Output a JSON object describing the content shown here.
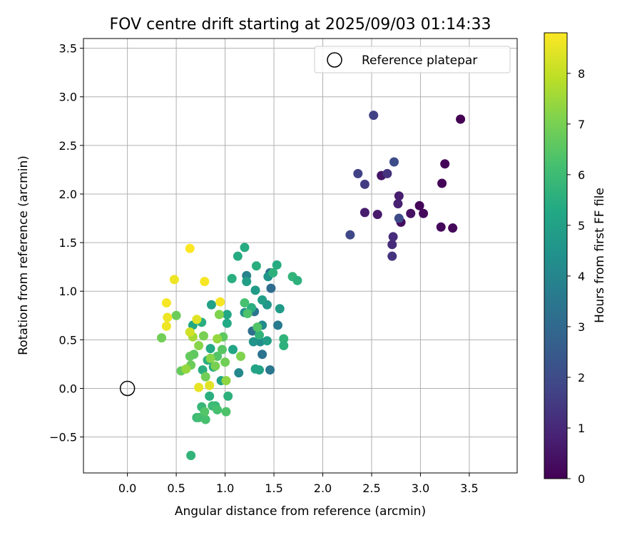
{
  "chart_data": {
    "type": "scatter",
    "title": "FOV centre drift starting at 2025/09/03 01:14:33",
    "xlabel": "Angular distance from reference (arcmin)",
    "ylabel": "Rotation from reference (arcmin)",
    "xlim": [
      -0.45,
      3.99
    ],
    "ylim": [
      -0.87,
      3.6
    ],
    "xticks": [
      "0.0",
      "0.5",
      "1.0",
      "1.5",
      "2.0",
      "2.5",
      "3.0",
      "3.5"
    ],
    "yticks": [
      "−0.5",
      "0.0",
      "0.5",
      "1.0",
      "1.5",
      "2.0",
      "2.5",
      "3.0",
      "3.5"
    ],
    "grid": true,
    "legend": {
      "placement": "upper right",
      "entries": [
        "Reference platepar"
      ]
    },
    "reference_point": {
      "x": 0.0,
      "y": 0.0
    },
    "colorbar": {
      "label": "Hours from first FF file",
      "colormap": "viridis",
      "range": [
        0,
        8.8
      ],
      "ticks": [
        "0",
        "1",
        "2",
        "3",
        "4",
        "5",
        "6",
        "7",
        "8"
      ]
    },
    "points": [
      {
        "x": 3.41,
        "y": 2.77,
        "h": 0.0
      },
      {
        "x": 3.25,
        "y": 2.31,
        "h": 0.1
      },
      {
        "x": 3.22,
        "y": 2.11,
        "h": 0.1
      },
      {
        "x": 2.99,
        "y": 1.88,
        "h": 0.1
      },
      {
        "x": 3.03,
        "y": 1.8,
        "h": 0.2
      },
      {
        "x": 2.9,
        "y": 1.8,
        "h": 0.4
      },
      {
        "x": 3.21,
        "y": 1.66,
        "h": 0.2
      },
      {
        "x": 3.33,
        "y": 1.65,
        "h": 0.2
      },
      {
        "x": 2.8,
        "y": 1.71,
        "h": 0.3
      },
      {
        "x": 2.78,
        "y": 1.98,
        "h": 0.7
      },
      {
        "x": 2.77,
        "y": 1.9,
        "h": 0.8
      },
      {
        "x": 2.6,
        "y": 2.19,
        "h": 0.5
      },
      {
        "x": 2.56,
        "y": 1.79,
        "h": 0.6
      },
      {
        "x": 2.43,
        "y": 1.81,
        "h": 0.7
      },
      {
        "x": 2.66,
        "y": 2.21,
        "h": 1.3
      },
      {
        "x": 2.72,
        "y": 1.56,
        "h": 1.1
      },
      {
        "x": 2.71,
        "y": 1.48,
        "h": 1.1
      },
      {
        "x": 2.71,
        "y": 1.36,
        "h": 1.3
      },
      {
        "x": 2.78,
        "y": 1.75,
        "h": 2.0
      },
      {
        "x": 2.43,
        "y": 2.1,
        "h": 1.5
      },
      {
        "x": 2.36,
        "y": 2.21,
        "h": 1.7
      },
      {
        "x": 2.52,
        "y": 2.81,
        "h": 1.7
      },
      {
        "x": 2.73,
        "y": 2.33,
        "h": 2.0
      },
      {
        "x": 2.28,
        "y": 1.58,
        "h": 1.9
      },
      {
        "x": 1.46,
        "y": 1.19,
        "h": 3.2
      },
      {
        "x": 1.47,
        "y": 1.03,
        "h": 3.1
      },
      {
        "x": 1.28,
        "y": 0.59,
        "h": 3.2
      },
      {
        "x": 1.3,
        "y": 0.79,
        "h": 3.4
      },
      {
        "x": 1.38,
        "y": 0.35,
        "h": 3.3
      },
      {
        "x": 1.46,
        "y": 0.19,
        "h": 3.5
      },
      {
        "x": 1.54,
        "y": 0.65,
        "h": 3.6
      },
      {
        "x": 1.22,
        "y": 1.16,
        "h": 3.9
      },
      {
        "x": 1.14,
        "y": 0.16,
        "h": 4.1
      },
      {
        "x": 1.36,
        "y": 0.48,
        "h": 4.3
      },
      {
        "x": 1.38,
        "y": 0.65,
        "h": 4.2
      },
      {
        "x": 1.29,
        "y": 0.48,
        "h": 4.5
      },
      {
        "x": 1.2,
        "y": 0.78,
        "h": 4.4
      },
      {
        "x": 1.43,
        "y": 0.86,
        "h": 4.6
      },
      {
        "x": 1.44,
        "y": 1.15,
        "h": 4.5
      },
      {
        "x": 1.31,
        "y": 1.01,
        "h": 4.8
      },
      {
        "x": 1.22,
        "y": 1.1,
        "h": 4.9
      },
      {
        "x": 1.38,
        "y": 0.91,
        "h": 4.9
      },
      {
        "x": 1.56,
        "y": 0.82,
        "h": 4.8
      },
      {
        "x": 1.43,
        "y": 0.49,
        "h": 4.9
      },
      {
        "x": 1.35,
        "y": 0.19,
        "h": 5.0
      },
      {
        "x": 1.31,
        "y": 0.2,
        "h": 5.1
      },
      {
        "x": 1.08,
        "y": 0.4,
        "h": 5.2
      },
      {
        "x": 0.86,
        "y": 0.86,
        "h": 5.0
      },
      {
        "x": 0.96,
        "y": 0.08,
        "h": 5.1
      },
      {
        "x": 1.02,
        "y": 0.76,
        "h": 5.2
      },
      {
        "x": 1.02,
        "y": 0.67,
        "h": 5.3
      },
      {
        "x": 0.67,
        "y": 0.65,
        "h": 5.3
      },
      {
        "x": 1.2,
        "y": 1.45,
        "h": 5.4
      },
      {
        "x": 1.13,
        "y": 1.36,
        "h": 5.4
      },
      {
        "x": 1.07,
        "y": 1.13,
        "h": 5.5
      },
      {
        "x": 1.32,
        "y": 1.26,
        "h": 5.5
      },
      {
        "x": 1.53,
        "y": 1.27,
        "h": 5.4
      },
      {
        "x": 1.49,
        "y": 1.19,
        "h": 5.6
      },
      {
        "x": 1.69,
        "y": 1.15,
        "h": 5.7
      },
      {
        "x": 1.74,
        "y": 1.11,
        "h": 5.6
      },
      {
        "x": 1.6,
        "y": 0.51,
        "h": 5.7
      },
      {
        "x": 1.6,
        "y": 0.44,
        "h": 5.6
      },
      {
        "x": 1.27,
        "y": 0.83,
        "h": 5.5
      },
      {
        "x": 1.35,
        "y": 0.55,
        "h": 5.7
      },
      {
        "x": 0.76,
        "y": 0.68,
        "h": 5.5
      },
      {
        "x": 0.85,
        "y": 0.41,
        "h": 5.3
      },
      {
        "x": 0.88,
        "y": 0.22,
        "h": 5.4
      },
      {
        "x": 0.77,
        "y": 0.19,
        "h": 5.5
      },
      {
        "x": 0.82,
        "y": 0.29,
        "h": 5.6
      },
      {
        "x": 0.84,
        "y": -0.08,
        "h": 5.5
      },
      {
        "x": 1.03,
        "y": -0.08,
        "h": 5.6
      },
      {
        "x": 0.9,
        "y": -0.18,
        "h": 5.8
      },
      {
        "x": 0.76,
        "y": -0.19,
        "h": 5.8
      },
      {
        "x": 0.71,
        "y": -0.3,
        "h": 5.9
      },
      {
        "x": 0.65,
        "y": -0.69,
        "h": 5.7
      },
      {
        "x": 0.73,
        "y": -0.3,
        "h": 6.1
      },
      {
        "x": 0.8,
        "y": -0.32,
        "h": 6.2
      },
      {
        "x": 0.87,
        "y": -0.18,
        "h": 6.0
      },
      {
        "x": 0.92,
        "y": -0.22,
        "h": 6.2
      },
      {
        "x": 1.01,
        "y": -0.24,
        "h": 6.3
      },
      {
        "x": 0.79,
        "y": -0.24,
        "h": 6.4
      },
      {
        "x": 1.2,
        "y": 0.88,
        "h": 6.2
      },
      {
        "x": 1.23,
        "y": 0.77,
        "h": 6.3
      },
      {
        "x": 1.33,
        "y": 0.63,
        "h": 6.4
      },
      {
        "x": 0.92,
        "y": 0.33,
        "h": 6.4
      },
      {
        "x": 0.97,
        "y": 0.4,
        "h": 6.5
      },
      {
        "x": 0.98,
        "y": 0.53,
        "h": 6.6
      },
      {
        "x": 0.68,
        "y": 0.35,
        "h": 6.6
      },
      {
        "x": 0.64,
        "y": 0.33,
        "h": 6.7
      },
      {
        "x": 0.55,
        "y": 0.18,
        "h": 6.7
      },
      {
        "x": 0.65,
        "y": 0.24,
        "h": 6.8
      },
      {
        "x": 0.5,
        "y": 0.75,
        "h": 6.8
      },
      {
        "x": 0.35,
        "y": 0.52,
        "h": 6.9
      },
      {
        "x": 0.8,
        "y": 0.12,
        "h": 6.9
      },
      {
        "x": 0.9,
        "y": 0.23,
        "h": 7.0
      },
      {
        "x": 1.0,
        "y": 0.27,
        "h": 6.9
      },
      {
        "x": 1.16,
        "y": 0.33,
        "h": 7.1
      },
      {
        "x": 0.94,
        "y": 0.76,
        "h": 7.1
      },
      {
        "x": 0.73,
        "y": 0.44,
        "h": 7.2
      },
      {
        "x": 0.78,
        "y": 0.54,
        "h": 7.0
      },
      {
        "x": 0.85,
        "y": 0.31,
        "h": 7.2
      },
      {
        "x": 1.01,
        "y": 0.08,
        "h": 7.3
      },
      {
        "x": 0.92,
        "y": 0.51,
        "h": 7.4
      },
      {
        "x": 0.6,
        "y": 0.2,
        "h": 7.4
      },
      {
        "x": 0.67,
        "y": 0.53,
        "h": 7.6
      },
      {
        "x": 0.64,
        "y": 0.58,
        "h": 8.2
      },
      {
        "x": 0.71,
        "y": 0.71,
        "h": 8.4
      },
      {
        "x": 0.73,
        "y": 0.01,
        "h": 8.5
      },
      {
        "x": 0.84,
        "y": 0.03,
        "h": 8.4
      },
      {
        "x": 0.4,
        "y": 0.64,
        "h": 8.6
      },
      {
        "x": 0.41,
        "y": 0.73,
        "h": 8.6
      },
      {
        "x": 0.4,
        "y": 0.88,
        "h": 8.7
      },
      {
        "x": 0.48,
        "y": 1.12,
        "h": 8.6
      },
      {
        "x": 0.79,
        "y": 1.1,
        "h": 8.7
      },
      {
        "x": 0.95,
        "y": 0.89,
        "h": 8.7
      },
      {
        "x": 0.64,
        "y": 1.44,
        "h": 8.8
      }
    ]
  }
}
